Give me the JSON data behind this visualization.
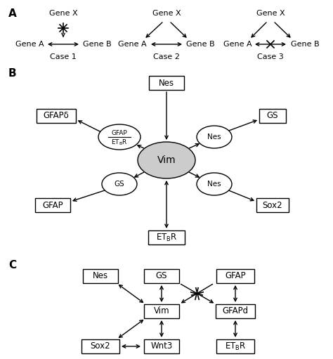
{
  "bg_color": "#ffffff",
  "font_family": "sans-serif",
  "section_A_label": "A",
  "section_B_label": "B",
  "section_C_label": "C",
  "case1_label": "Case 1",
  "case2_label": "Case 2",
  "case3_label": "Case 3",
  "geneX_label": "Gene X",
  "geneA_label": "Gene A",
  "geneB_label": "Gene B",
  "vim_label": "Vim",
  "nes_label": "Nes",
  "gs_label": "GS",
  "gfapd_label": "GFAPδ",
  "gfap_label": "GFAP",
  "sox2_label": "Sox2",
  "etbr_label": "ET_BR",
  "wnt3_label": "Wnt3",
  "gfapd2_label": "GFAPd",
  "vim_ellipse_color": "#cccccc"
}
